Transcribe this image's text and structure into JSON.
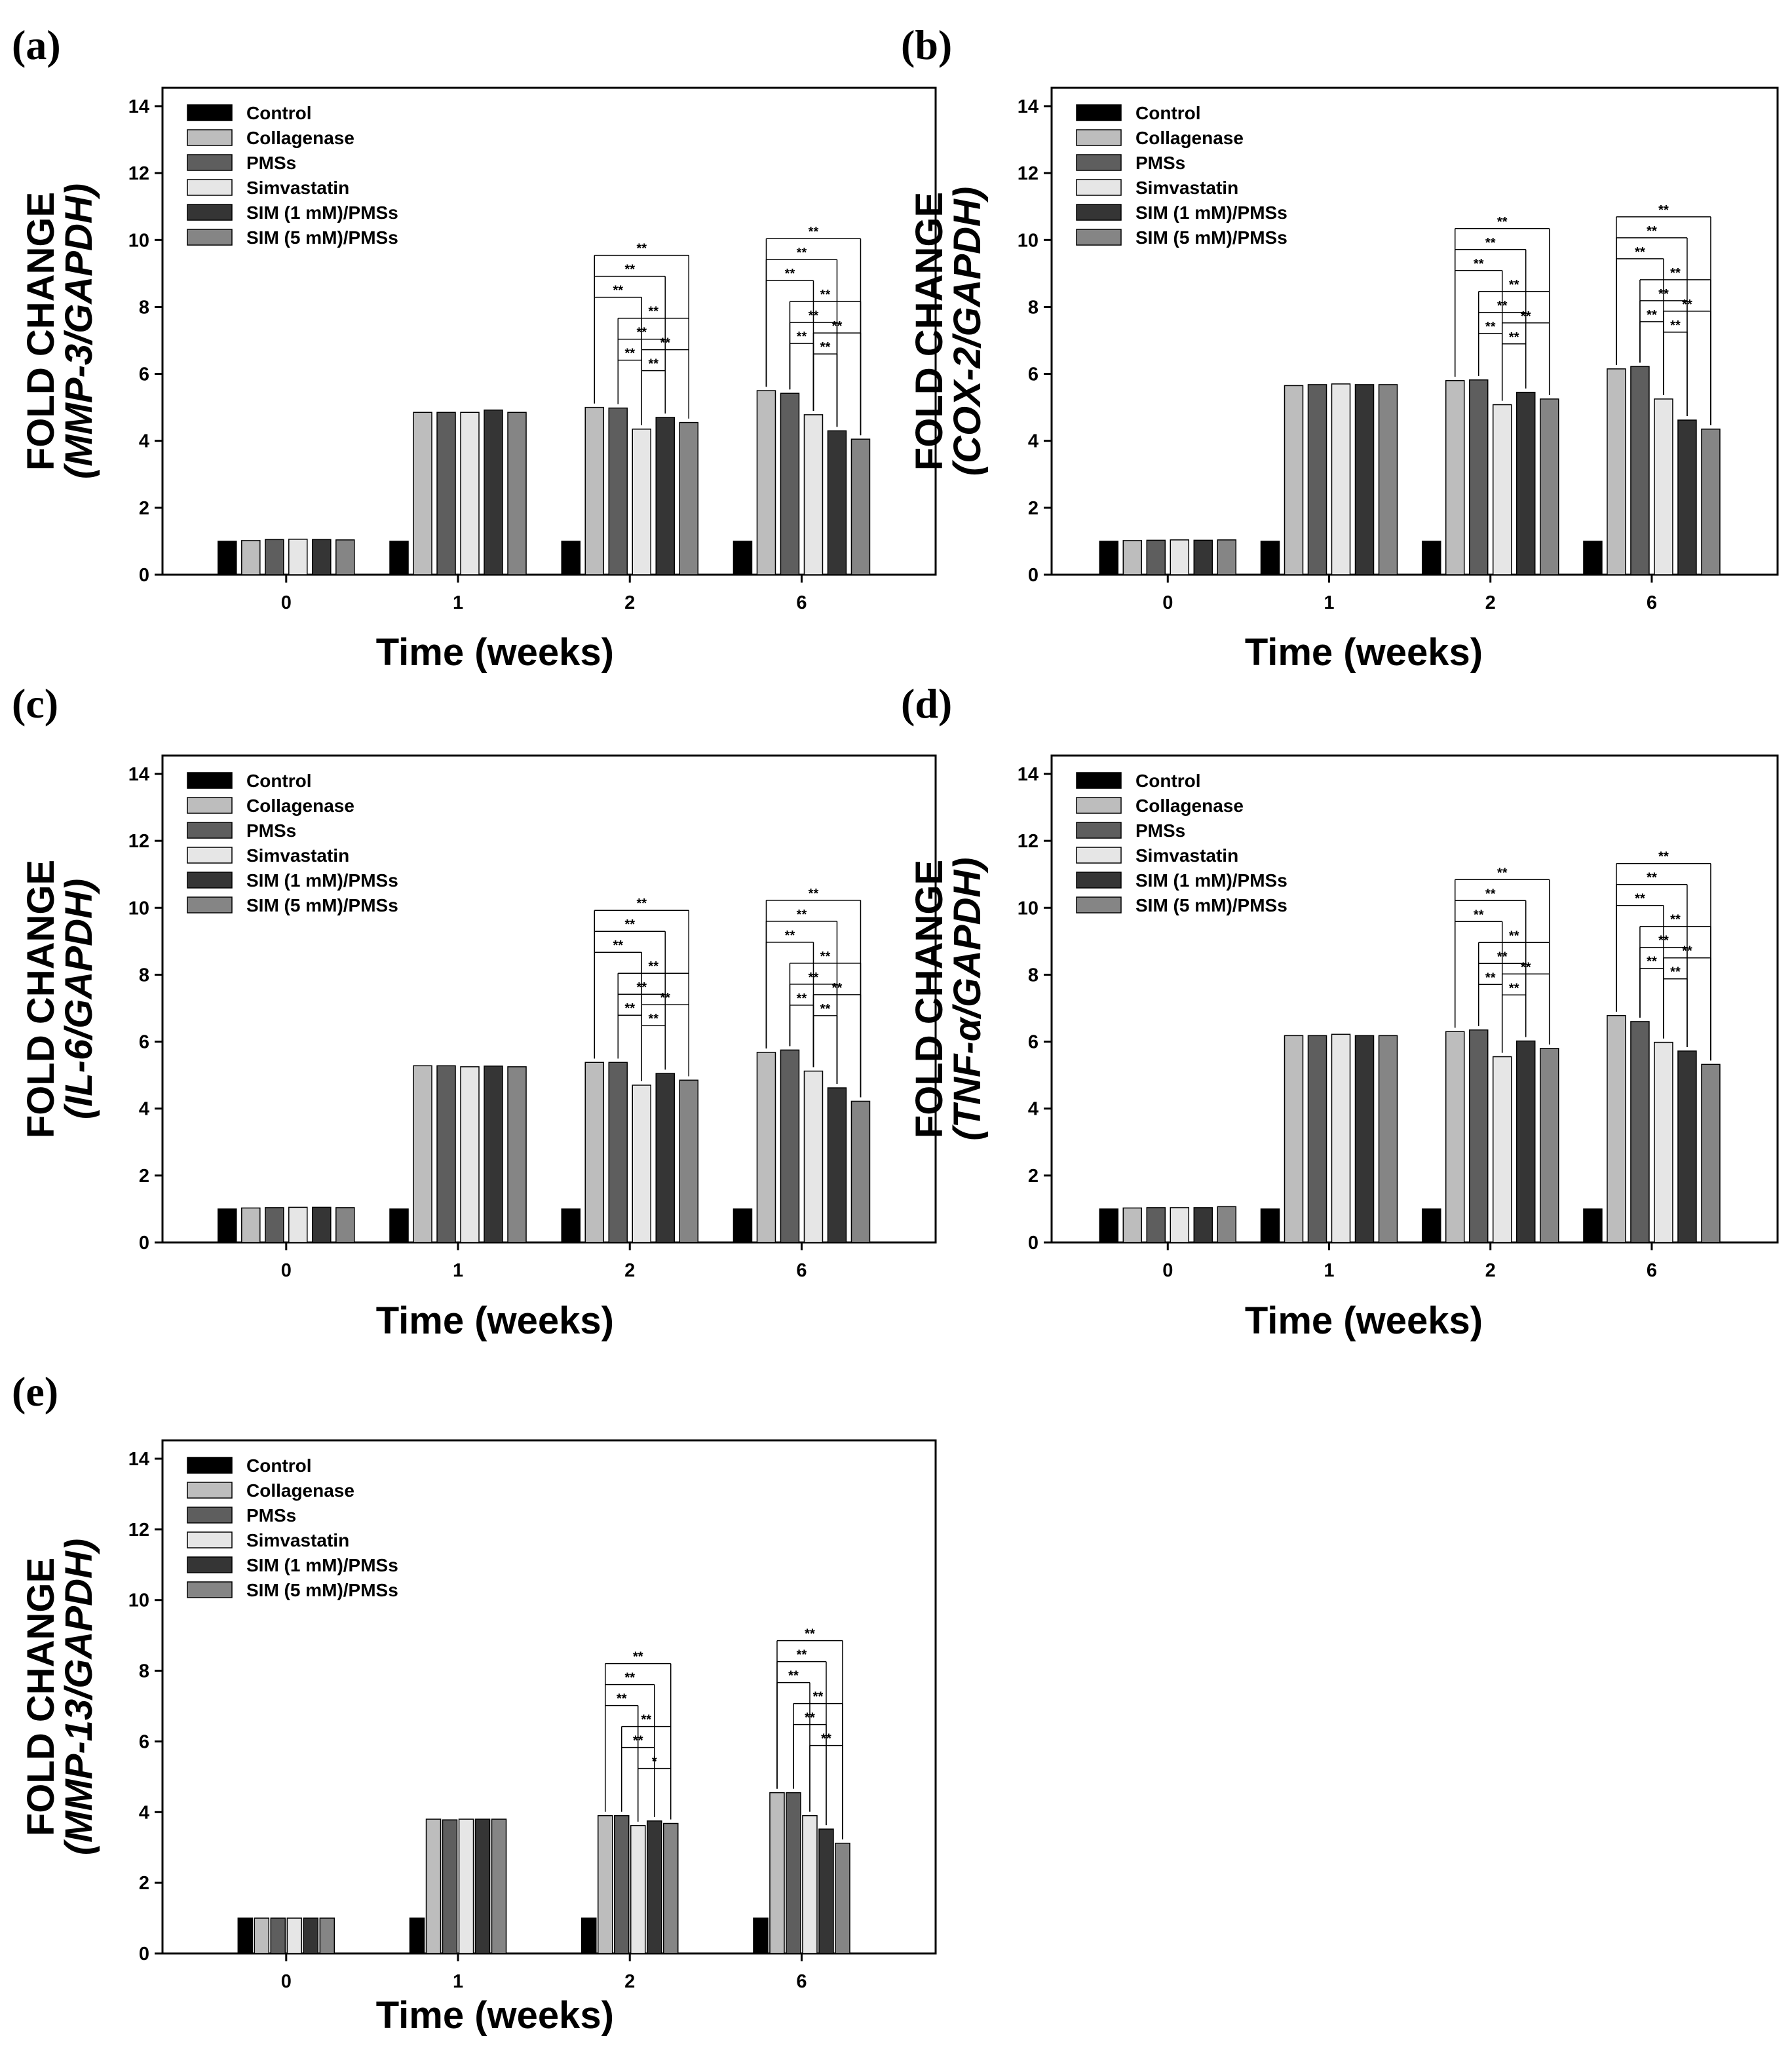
{
  "figure": {
    "series_colors": [
      "#000000",
      "#bdbdbd",
      "#5e5e5e",
      "#e6e6e6",
      "#353535",
      "#858585"
    ],
    "axis_color": "#000000",
    "significance_marks": [
      "**",
      "*"
    ]
  },
  "chart_data": [
    {
      "type": "bar",
      "panel_label": "(a)",
      "ylabel_prefix": "FOLD CHANGE",
      "ylabel_gene": "(MMP-3/GAPDH)",
      "xlabel": "Time (weeks)",
      "categories": [
        "0",
        "1",
        "2",
        "6"
      ],
      "ylim": [
        0,
        14
      ],
      "yticks": [
        "0",
        "2",
        "4",
        "6",
        "8",
        "10",
        "12",
        "14"
      ],
      "legend_position": "top-left",
      "grid": false,
      "series": [
        {
          "name": "Control",
          "values": [
            1.0,
            1.0,
            1.0,
            1.0
          ]
        },
        {
          "name": "Collagenase",
          "values": [
            1.02,
            4.85,
            5.0,
            5.5
          ]
        },
        {
          "name": "PMSs",
          "values": [
            1.05,
            4.85,
            4.98,
            5.42
          ]
        },
        {
          "name": "Simvastatin",
          "values": [
            1.06,
            4.85,
            4.35,
            4.78
          ]
        },
        {
          "name": "SIM (1 mM)/PMSs",
          "values": [
            1.05,
            4.92,
            4.7,
            4.3
          ]
        },
        {
          "name": "SIM (5 mM)/PMSs",
          "values": [
            1.04,
            4.85,
            4.55,
            4.05
          ]
        }
      ]
    },
    {
      "type": "bar",
      "panel_label": "(b)",
      "ylabel_prefix": "FOLD CHANGE",
      "ylabel_gene": "(COX-2/GAPDH)",
      "xlabel": "Time (weeks)",
      "categories": [
        "0",
        "1",
        "2",
        "6"
      ],
      "ylim": [
        0,
        14
      ],
      "yticks": [
        "0",
        "2",
        "4",
        "6",
        "8",
        "10",
        "12",
        "14"
      ],
      "legend_position": "top-left",
      "grid": false,
      "series": [
        {
          "name": "Control",
          "values": [
            1.0,
            1.0,
            1.0,
            1.0
          ]
        },
        {
          "name": "Collagenase",
          "values": [
            1.02,
            5.65,
            5.8,
            6.15
          ]
        },
        {
          "name": "PMSs",
          "values": [
            1.03,
            5.68,
            5.82,
            6.22
          ]
        },
        {
          "name": "Simvastatin",
          "values": [
            1.04,
            5.7,
            5.08,
            5.25
          ]
        },
        {
          "name": "SIM (1 mM)/PMSs",
          "values": [
            1.03,
            5.68,
            5.45,
            4.62
          ]
        },
        {
          "name": "SIM (5 mM)/PMSs",
          "values": [
            1.04,
            5.68,
            5.25,
            4.35
          ]
        }
      ]
    },
    {
      "type": "bar",
      "panel_label": "(c)",
      "ylabel_prefix": "FOLD CHANGE",
      "ylabel_gene": "(IL-6/GAPDH)",
      "xlabel": "Time (weeks)",
      "categories": [
        "0",
        "1",
        "2",
        "6"
      ],
      "ylim": [
        0,
        14
      ],
      "yticks": [
        "0",
        "2",
        "4",
        "6",
        "8",
        "10",
        "12",
        "14"
      ],
      "legend_position": "top-left",
      "grid": false,
      "series": [
        {
          "name": "Control",
          "values": [
            1.0,
            1.0,
            1.0,
            1.0
          ]
        },
        {
          "name": "Collagenase",
          "values": [
            1.03,
            5.28,
            5.38,
            5.68
          ]
        },
        {
          "name": "PMSs",
          "values": [
            1.04,
            5.28,
            5.38,
            5.75
          ]
        },
        {
          "name": "Simvastatin",
          "values": [
            1.05,
            5.25,
            4.7,
            5.12
          ]
        },
        {
          "name": "SIM (1 mM)/PMSs",
          "values": [
            1.05,
            5.27,
            5.05,
            4.62
          ]
        },
        {
          "name": "SIM (5 mM)/PMSs",
          "values": [
            1.04,
            5.25,
            4.85,
            4.22
          ]
        }
      ]
    },
    {
      "type": "bar",
      "panel_label": "(d)",
      "ylabel_prefix": "FOLD CHANGE",
      "ylabel_gene": "(TNF-α/GAPDH)",
      "xlabel": "Time (weeks)",
      "categories": [
        "0",
        "1",
        "2",
        "6"
      ],
      "ylim": [
        0,
        14
      ],
      "yticks": [
        "0",
        "2",
        "4",
        "6",
        "8",
        "10",
        "12",
        "14"
      ],
      "legend_position": "top-left",
      "grid": false,
      "series": [
        {
          "name": "Control",
          "values": [
            1.0,
            1.0,
            1.0,
            1.0
          ]
        },
        {
          "name": "Collagenase",
          "values": [
            1.03,
            6.18,
            6.3,
            6.78
          ]
        },
        {
          "name": "PMSs",
          "values": [
            1.04,
            6.18,
            6.35,
            6.6
          ]
        },
        {
          "name": "Simvastatin",
          "values": [
            1.04,
            6.22,
            5.55,
            5.98
          ]
        },
        {
          "name": "SIM (1 mM)/PMSs",
          "values": [
            1.04,
            6.18,
            6.02,
            5.72
          ]
        },
        {
          "name": "SIM (5 mM)/PMSs",
          "values": [
            1.07,
            6.18,
            5.8,
            5.32
          ]
        }
      ]
    },
    {
      "type": "bar",
      "panel_label": "(e)",
      "ylabel_prefix": "FOLD CHANGE",
      "ylabel_gene": "(MMP-13/GAPDH)",
      "xlabel": "Time (weeks)",
      "categories": [
        "0",
        "1",
        "2",
        "6"
      ],
      "ylim": [
        0,
        14
      ],
      "yticks": [
        "0",
        "2",
        "4",
        "6",
        "8",
        "10",
        "12",
        "14"
      ],
      "legend_position": "top-left",
      "grid": false,
      "series": [
        {
          "name": "Control",
          "values": [
            1.0,
            1.0,
            1.0,
            1.0
          ]
        },
        {
          "name": "Collagenase",
          "values": [
            1.0,
            3.8,
            3.9,
            4.55
          ]
        },
        {
          "name": "PMSs",
          "values": [
            1.0,
            3.78,
            3.9,
            4.55
          ]
        },
        {
          "name": "Simvastatin",
          "values": [
            1.0,
            3.8,
            3.62,
            3.9
          ]
        },
        {
          "name": "SIM (1 mM)/PMSs",
          "values": [
            1.0,
            3.8,
            3.75,
            3.52
          ]
        },
        {
          "name": "SIM (5 mM)/PMSs",
          "values": [
            1.0,
            3.8,
            3.68,
            3.12
          ]
        }
      ]
    }
  ]
}
